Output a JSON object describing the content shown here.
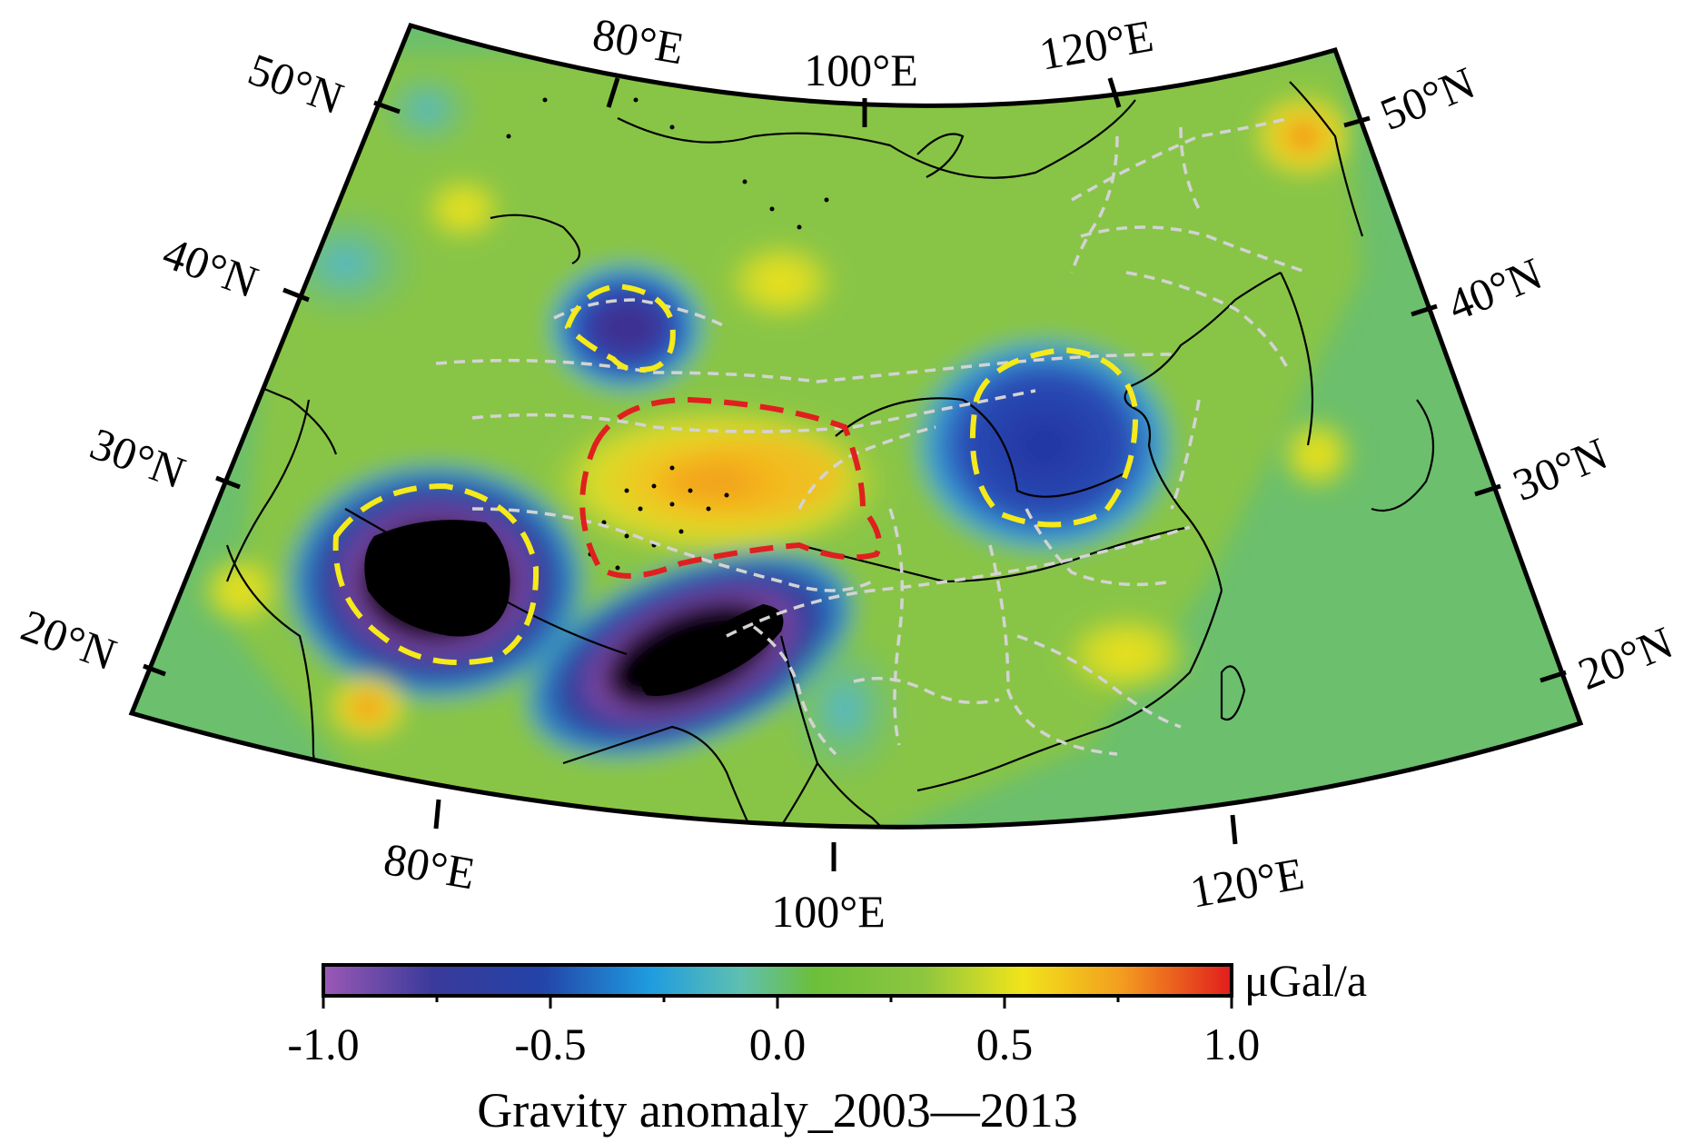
{
  "map": {
    "top_lon_labels": [
      "80°E",
      "100°E",
      "120°E"
    ],
    "bottom_lon_labels": [
      "80°E",
      "100°E",
      "120°E"
    ],
    "left_lat_labels": [
      "50°N",
      "40°N",
      "30°N",
      "20°N"
    ],
    "right_lat_labels": [
      "50°N",
      "40°N",
      "30°N",
      "20°N"
    ],
    "colors": {
      "background": "#6cbf6c",
      "boundary_dashed": "#d3d3d3",
      "highlight_yellow": "#f5ea1a",
      "highlight_red": "#e01f1f",
      "coast": "#000000"
    }
  },
  "colorbar": {
    "unit": "μGal/a",
    "tick_labels": [
      "-1.0",
      "-0.5",
      "0.0",
      "0.5",
      "1.0"
    ],
    "min": -1.0,
    "max": 1.0,
    "title": "Gravity anomaly_2003—2013",
    "stops": [
      "#9b59b6",
      "#2d3a8c",
      "#1f8fd8",
      "#63c0a8",
      "#6cbf3a",
      "#8dc63f",
      "#f1e41a",
      "#f39c20",
      "#e11d1d"
    ]
  }
}
